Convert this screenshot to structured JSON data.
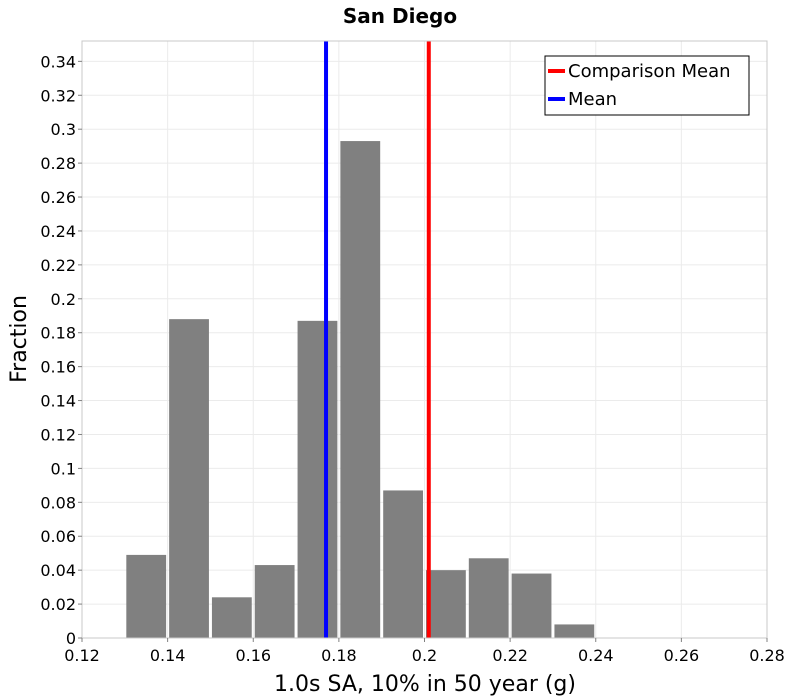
{
  "chart_data": {
    "type": "bar",
    "title": "San Diego",
    "xlabel": "1.0s SA, 10% in 50 year (g)",
    "ylabel": "Fraction",
    "xlim": [
      0.12,
      0.28
    ],
    "ylim": [
      0,
      0.352
    ],
    "xticks": [
      0.12,
      0.14,
      0.16,
      0.18,
      0.2,
      0.22,
      0.24,
      0.26,
      0.28
    ],
    "xtick_labels": [
      "0.12",
      "0.14",
      "0.16",
      "0.18",
      "0.2",
      "0.22",
      "0.24",
      "0.26",
      "0.28"
    ],
    "yticks": [
      0,
      0.02,
      0.04,
      0.06,
      0.08,
      0.1,
      0.12,
      0.14,
      0.16,
      0.18,
      0.2,
      0.22,
      0.24,
      0.26,
      0.28,
      0.3,
      0.32,
      0.34
    ],
    "ytick_labels": [
      "0",
      "0.02",
      "0.04",
      "0.06",
      "0.08",
      "0.1",
      "0.12",
      "0.14",
      "0.16",
      "0.18",
      "0.2",
      "0.22",
      "0.24",
      "0.26",
      "0.28",
      "0.3",
      "0.32",
      "0.34"
    ],
    "bin_width": 0.01,
    "bins": [
      {
        "x": 0.135,
        "value": 0.049
      },
      {
        "x": 0.145,
        "value": 0.188
      },
      {
        "x": 0.155,
        "value": 0.024
      },
      {
        "x": 0.165,
        "value": 0.043
      },
      {
        "x": 0.175,
        "value": 0.187
      },
      {
        "x": 0.185,
        "value": 0.293
      },
      {
        "x": 0.195,
        "value": 0.087
      },
      {
        "x": 0.205,
        "value": 0.04
      },
      {
        "x": 0.215,
        "value": 0.047
      },
      {
        "x": 0.225,
        "value": 0.038
      },
      {
        "x": 0.235,
        "value": 0.008
      }
    ],
    "bar_color": "#808080",
    "grid": true,
    "vlines": [
      {
        "name": "Comparison Mean",
        "x": 0.201,
        "color": "#ff0000"
      },
      {
        "name": "Mean",
        "x": 0.177,
        "color": "#0000ff"
      }
    ],
    "legend": {
      "placement": "top-right",
      "entries": [
        {
          "label": "Comparison Mean",
          "color": "#ff0000"
        },
        {
          "label": "Mean",
          "color": "#0000ff"
        }
      ]
    }
  }
}
